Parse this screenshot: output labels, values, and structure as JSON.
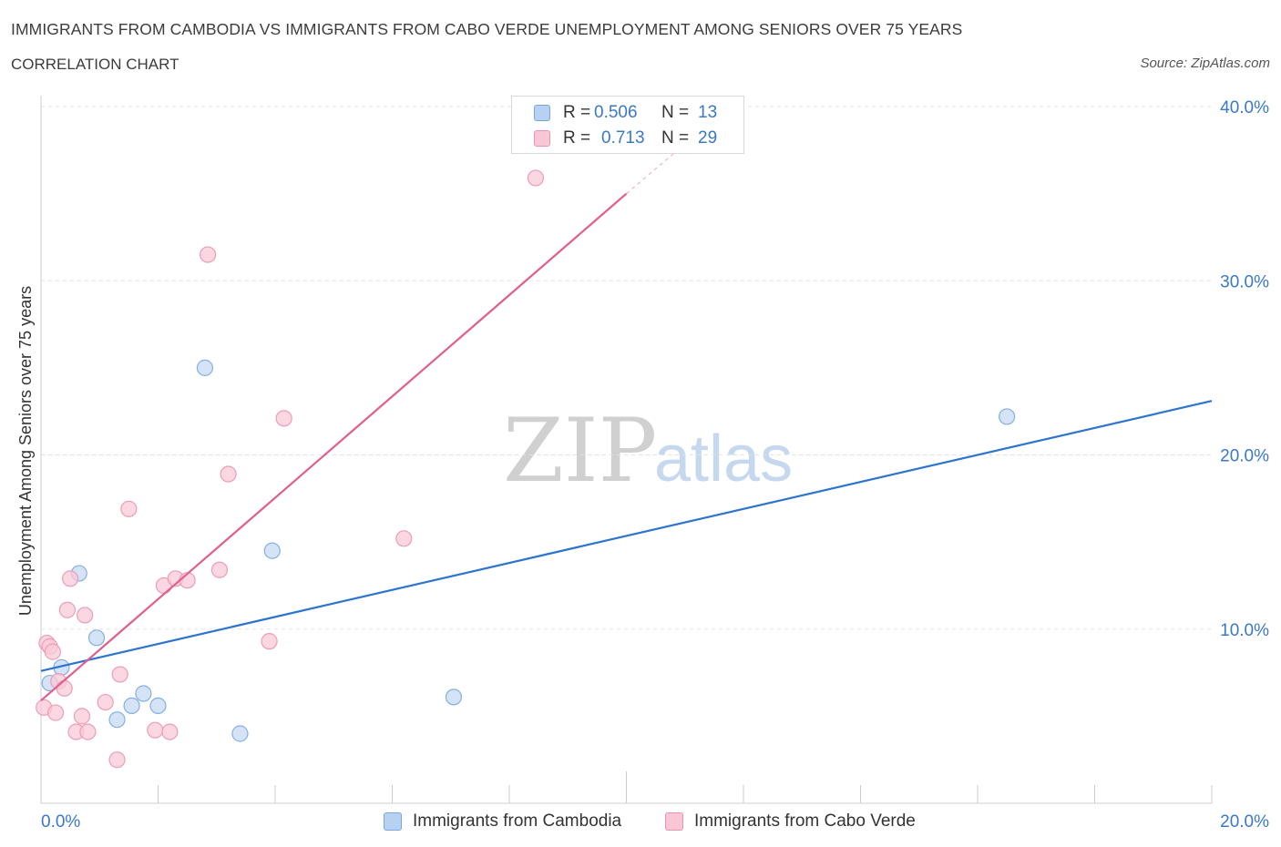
{
  "header": {
    "title": "IMMIGRANTS FROM CAMBODIA VS IMMIGRANTS FROM CABO VERDE UNEMPLOYMENT AMONG SENIORS OVER 75 YEARS",
    "subtitle": "CORRELATION CHART",
    "source": "Source: ZipAtlas.com"
  },
  "watermark": {
    "zip": "ZIP",
    "atlas": "atlas"
  },
  "stats_legend": [
    {
      "r_label": "R =",
      "r_value": "0.506",
      "n_label": "N =",
      "n_value": "13",
      "color": "#b7d1f2",
      "border": "#7aa7de"
    },
    {
      "r_label": "R =",
      "r_value": "0.713",
      "n_label": "N =",
      "n_value": "29",
      "color": "#f8c6d4",
      "border": "#e995ae"
    }
  ],
  "colors": {
    "cambodia_fill": "#c5daf3",
    "cambodia_stroke": "#85afe1",
    "cambodia_line": "#2d74d0",
    "caboverde_fill": "#f9cad8",
    "caboverde_stroke": "#ec9db5",
    "caboverde_line": "#e0608e",
    "grid": "#e3e3e3",
    "axis": "#cccccc",
    "tick_label": "#3a78c8"
  },
  "chart_data": {
    "type": "scatter",
    "title": "IMMIGRANTS FROM CAMBODIA VS IMMIGRANTS FROM CABO VERDE UNEMPLOYMENT AMONG SENIORS OVER 75 YEARS",
    "xlabel": "",
    "ylabel": "Unemployment Among Seniors over 75 years",
    "xlim": [
      0,
      20
    ],
    "ylim": [
      0,
      40
    ],
    "x_tick_labels": [
      "0.0%",
      "20.0%"
    ],
    "y_tick_values": [
      10,
      20,
      30,
      40
    ],
    "y_tick_labels": [
      "10.0%",
      "20.0%",
      "30.0%",
      "40.0%"
    ],
    "grid": true,
    "series": [
      {
        "name": "Immigrants from Cambodia",
        "points": [
          {
            "x": 0.15,
            "y": 6.9
          },
          {
            "x": 0.35,
            "y": 7.8
          },
          {
            "x": 0.65,
            "y": 13.2
          },
          {
            "x": 0.95,
            "y": 9.5
          },
          {
            "x": 1.3,
            "y": 4.8
          },
          {
            "x": 1.55,
            "y": 5.6
          },
          {
            "x": 1.75,
            "y": 6.3
          },
          {
            "x": 2.0,
            "y": 5.6
          },
          {
            "x": 2.8,
            "y": 25.0
          },
          {
            "x": 3.4,
            "y": 4.0
          },
          {
            "x": 3.95,
            "y": 14.5
          },
          {
            "x": 7.05,
            "y": 6.1
          },
          {
            "x": 16.5,
            "y": 22.2
          }
        ],
        "trend": {
          "x": [
            0,
            20
          ],
          "y": [
            7.6,
            23.1
          ]
        }
      },
      {
        "name": "Immigrants from Cabo Verde",
        "points": [
          {
            "x": 0.05,
            "y": 5.5
          },
          {
            "x": 0.1,
            "y": 9.2
          },
          {
            "x": 0.15,
            "y": 9.0
          },
          {
            "x": 0.2,
            "y": 8.7
          },
          {
            "x": 0.25,
            "y": 5.2
          },
          {
            "x": 0.3,
            "y": 7.0
          },
          {
            "x": 0.4,
            "y": 6.6
          },
          {
            "x": 0.45,
            "y": 11.1
          },
          {
            "x": 0.5,
            "y": 12.9
          },
          {
            "x": 0.6,
            "y": 4.1
          },
          {
            "x": 0.7,
            "y": 5.0
          },
          {
            "x": 0.75,
            "y": 10.8
          },
          {
            "x": 0.8,
            "y": 4.1
          },
          {
            "x": 1.1,
            "y": 5.8
          },
          {
            "x": 1.3,
            "y": 2.5
          },
          {
            "x": 1.35,
            "y": 7.4
          },
          {
            "x": 1.5,
            "y": 16.9
          },
          {
            "x": 1.95,
            "y": 4.2
          },
          {
            "x": 2.1,
            "y": 12.5
          },
          {
            "x": 2.2,
            "y": 4.1
          },
          {
            "x": 2.3,
            "y": 12.9
          },
          {
            "x": 2.5,
            "y": 12.8
          },
          {
            "x": 2.85,
            "y": 31.5
          },
          {
            "x": 3.05,
            "y": 13.4
          },
          {
            "x": 3.2,
            "y": 18.9
          },
          {
            "x": 3.9,
            "y": 9.3
          },
          {
            "x": 4.15,
            "y": 22.1
          },
          {
            "x": 6.2,
            "y": 15.2
          },
          {
            "x": 8.45,
            "y": 35.9
          }
        ],
        "trend": {
          "x": [
            0,
            10
          ],
          "y": [
            5.9,
            35.0
          ]
        },
        "trend_dashed": {
          "x": [
            10,
            11.3
          ],
          "y": [
            35.0,
            38.7
          ]
        }
      }
    ]
  },
  "bottom_legend": [
    {
      "label": "Immigrants from Cambodia"
    },
    {
      "label": "Immigrants from Cabo Verde"
    }
  ]
}
